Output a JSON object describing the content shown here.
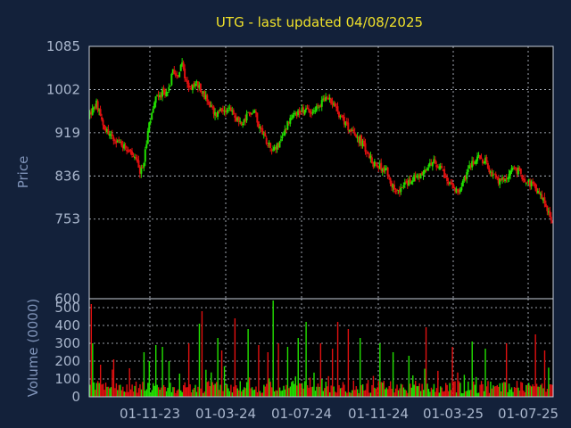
{
  "chart_data": {
    "type": "candlestick",
    "title": "UTG - last updated 04/08/2025",
    "colors": {
      "up": "#22e000",
      "down": "#e01010",
      "background": "#13213a",
      "plot_background": "#000000",
      "title": "#f0e12a",
      "grid": "#c8cfdb"
    },
    "x_tick_labels": [
      "01-11-23",
      "01-03-24",
      "01-07-24",
      "01-11-24",
      "01-03-25",
      "01-07-25"
    ],
    "price_panel": {
      "ylabel": "Price",
      "ylim": [
        600,
        1085
      ],
      "y_ticks": [
        600,
        753,
        836,
        919,
        1002,
        1085
      ],
      "grid": true,
      "close_anchors": [
        [
          0,
          955
        ],
        [
          5,
          975
        ],
        [
          10,
          935
        ],
        [
          15,
          915
        ],
        [
          20,
          905
        ],
        [
          25,
          895
        ],
        [
          30,
          885
        ],
        [
          35,
          870
        ],
        [
          38,
          845
        ],
        [
          40,
          850
        ],
        [
          45,
          935
        ],
        [
          50,
          985
        ],
        [
          55,
          995
        ],
        [
          60,
          1000
        ],
        [
          63,
          1040
        ],
        [
          67,
          1030
        ],
        [
          70,
          1050
        ],
        [
          73,
          1020
        ],
        [
          76,
          1000
        ],
        [
          80,
          1015
        ],
        [
          85,
          1000
        ],
        [
          90,
          975
        ],
        [
          95,
          955
        ],
        [
          100,
          960
        ],
        [
          105,
          965
        ],
        [
          110,
          950
        ],
        [
          115,
          935
        ],
        [
          120,
          955
        ],
        [
          125,
          960
        ],
        [
          130,
          920
        ],
        [
          135,
          900
        ],
        [
          140,
          885
        ],
        [
          145,
          900
        ],
        [
          150,
          940
        ],
        [
          155,
          950
        ],
        [
          160,
          960
        ],
        [
          165,
          965
        ],
        [
          170,
          960
        ],
        [
          175,
          975
        ],
        [
          180,
          985
        ],
        [
          185,
          975
        ],
        [
          190,
          950
        ],
        [
          195,
          930
        ],
        [
          200,
          915
        ],
        [
          205,
          905
        ],
        [
          210,
          885
        ],
        [
          215,
          860
        ],
        [
          220,
          855
        ],
        [
          225,
          845
        ],
        [
          230,
          815
        ],
        [
          235,
          810
        ],
        [
          240,
          820
        ],
        [
          245,
          830
        ],
        [
          250,
          835
        ],
        [
          255,
          850
        ],
        [
          260,
          865
        ],
        [
          265,
          855
        ],
        [
          270,
          830
        ],
        [
          275,
          815
        ],
        [
          280,
          810
        ],
        [
          285,
          835
        ],
        [
          290,
          860
        ],
        [
          295,
          870
        ],
        [
          300,
          865
        ],
        [
          305,
          840
        ],
        [
          310,
          825
        ],
        [
          315,
          830
        ],
        [
          320,
          850
        ],
        [
          325,
          845
        ],
        [
          330,
          830
        ],
        [
          335,
          820
        ],
        [
          340,
          810
        ],
        [
          345,
          785
        ],
        [
          350,
          745
        ]
      ]
    },
    "volume_panel": {
      "ylabel": "Volume (0000)",
      "ylim": [
        0,
        550
      ],
      "y_ticks": [
        0,
        100,
        200,
        300,
        400,
        500
      ],
      "grid": true,
      "spikes": [
        [
          1,
          520
        ],
        [
          2,
          300
        ],
        [
          8,
          180
        ],
        [
          18,
          210
        ],
        [
          30,
          160
        ],
        [
          41,
          250
        ],
        [
          45,
          200
        ],
        [
          50,
          290
        ],
        [
          55,
          280
        ],
        [
          60,
          200
        ],
        [
          75,
          300
        ],
        [
          83,
          410
        ],
        [
          85,
          480
        ],
        [
          97,
          330
        ],
        [
          100,
          260
        ],
        [
          110,
          440
        ],
        [
          120,
          380
        ],
        [
          128,
          290
        ],
        [
          135,
          250
        ],
        [
          139,
          540
        ],
        [
          143,
          300
        ],
        [
          150,
          280
        ],
        [
          158,
          330
        ],
        [
          164,
          420
        ],
        [
          175,
          300
        ],
        [
          184,
          270
        ],
        [
          188,
          420
        ],
        [
          196,
          380
        ],
        [
          205,
          330
        ],
        [
          220,
          300
        ],
        [
          230,
          250
        ],
        [
          242,
          230
        ],
        [
          255,
          390
        ],
        [
          275,
          280
        ],
        [
          290,
          310
        ],
        [
          300,
          270
        ],
        [
          316,
          300
        ],
        [
          338,
          350
        ],
        [
          345,
          260
        ]
      ]
    }
  }
}
